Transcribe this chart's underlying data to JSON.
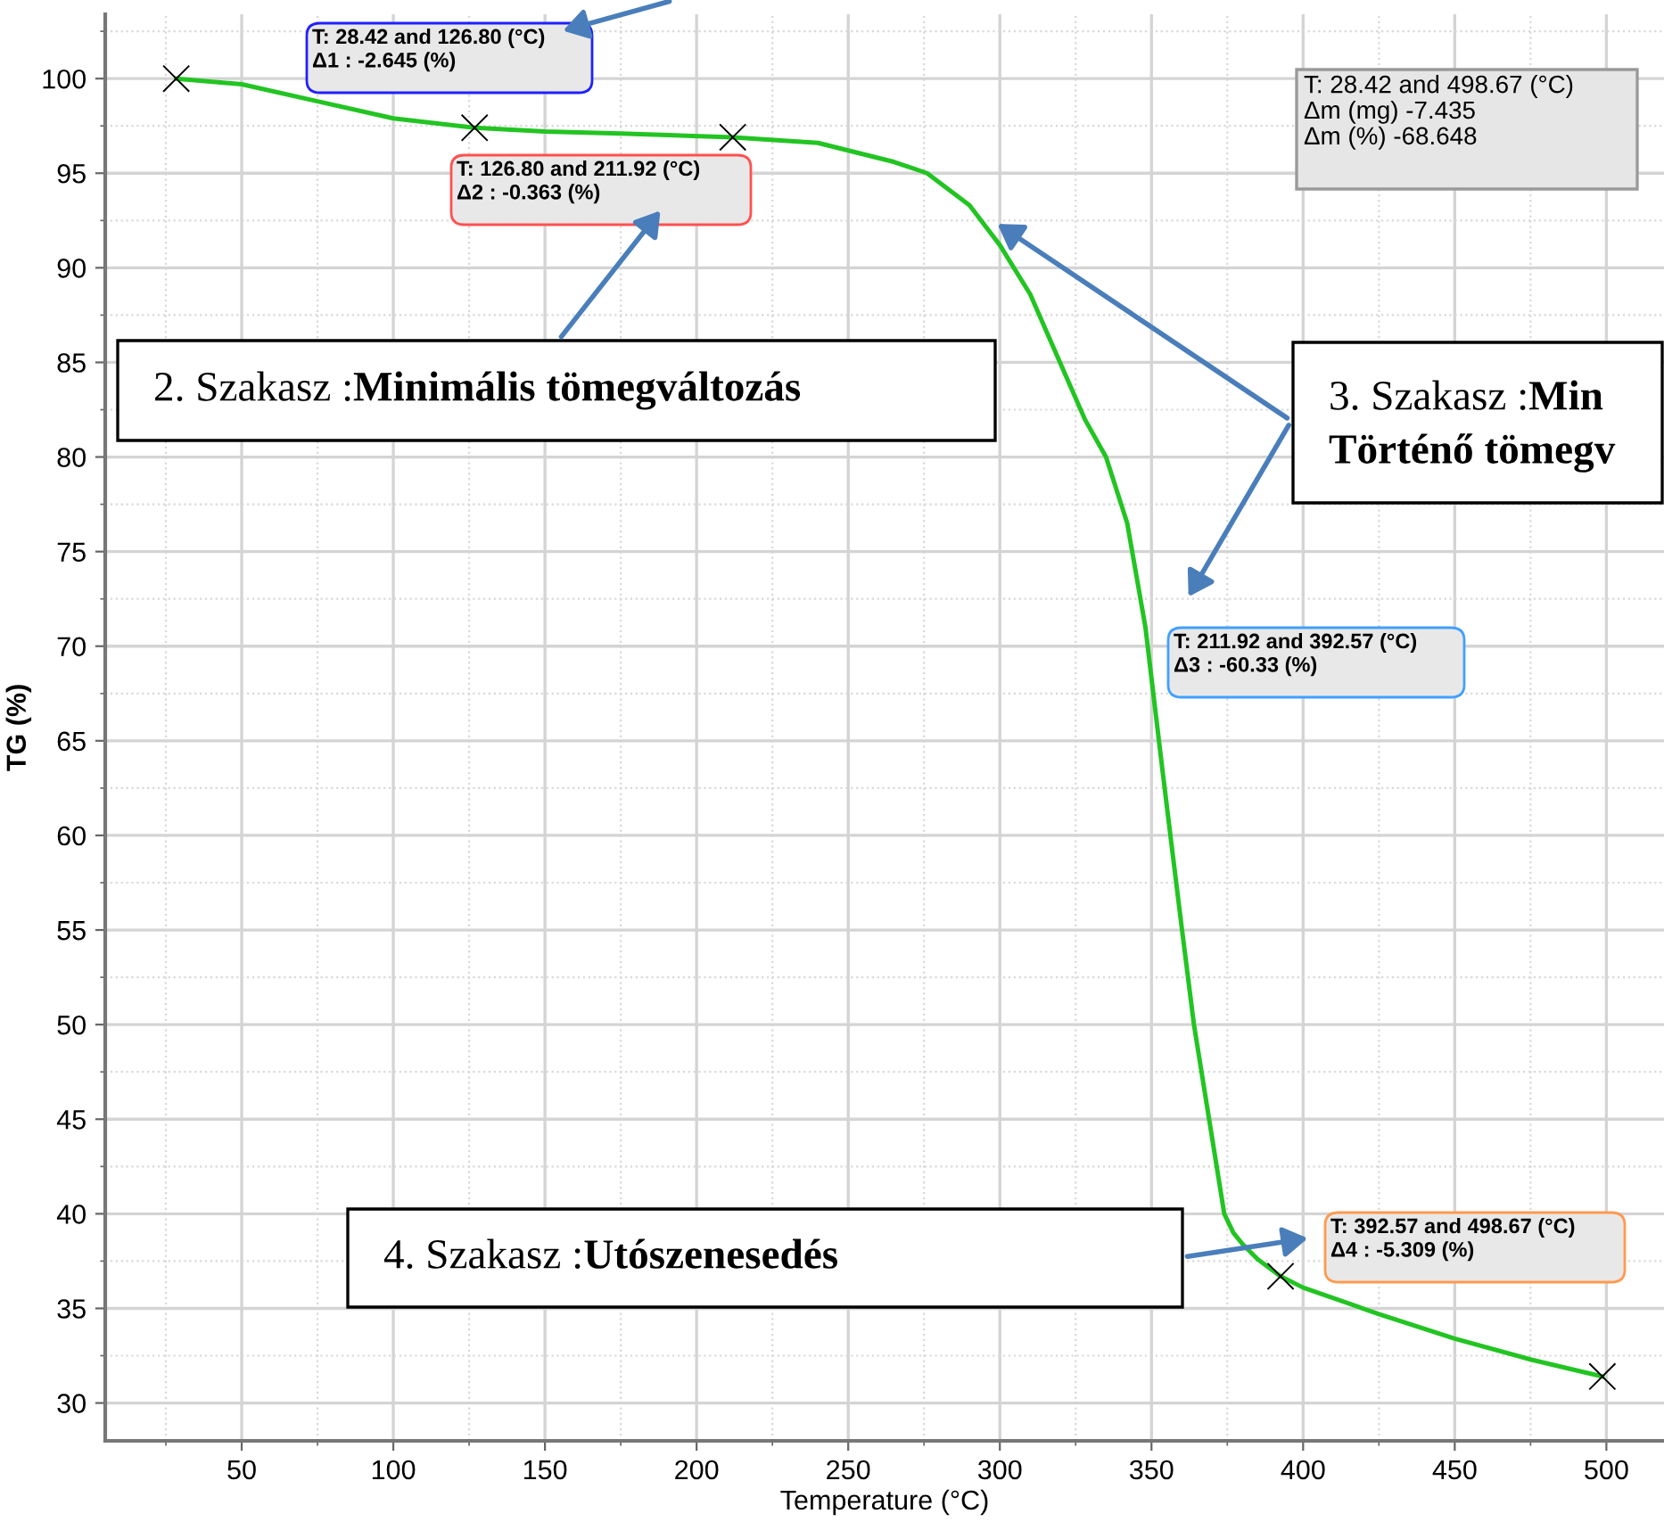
{
  "chart_data": {
    "type": "line",
    "xlabel": "Temperature (°C)",
    "ylabel": "TG (%)",
    "xlim": [
      5,
      519
    ],
    "xticks": [
      50,
      100,
      150,
      200,
      250,
      300,
      350,
      400,
      450,
      500
    ],
    "ylim": [
      28,
      103.4
    ],
    "yticks": [
      30,
      35,
      40,
      45,
      50,
      55,
      60,
      65,
      70,
      75,
      80,
      85,
      90,
      95,
      100
    ],
    "grid": true,
    "legend": false,
    "series": [
      {
        "color": "#22c422",
        "marker": "none",
        "line_style": "solid",
        "x": [
          28.42,
          50,
          75,
          100,
          126.8,
          150,
          175,
          211.92,
          240,
          255,
          265,
          276,
          290,
          300,
          310,
          319,
          328,
          335,
          342,
          348,
          353.5,
          357,
          360,
          364,
          369,
          372,
          374,
          377,
          380,
          385,
          392.57,
          400,
          425,
          450,
          475,
          498.67
        ],
        "values": [
          100.0,
          99.7,
          98.8,
          97.9,
          97.4,
          97.2,
          97.1,
          96.9,
          96.6,
          96.0,
          95.6,
          95.0,
          93.3,
          91.2,
          88.6,
          85.3,
          82.0,
          80.0,
          76.5,
          71.0,
          63.6,
          59.0,
          55.1,
          50.0,
          45.0,
          42.0,
          40.0,
          39.0,
          38.4,
          37.6,
          36.7,
          36.1,
          34.7,
          33.4,
          32.3,
          31.4
        ]
      },
      {
        "type": "scatter",
        "color": "#000000",
        "marker": "cross",
        "x": [
          28.42,
          126.8,
          211.92,
          392.57,
          498.67
        ],
        "values": [
          100.0,
          97.4,
          96.9,
          36.7,
          31.4
        ]
      }
    ],
    "annotations": [
      "T: 28.42 and 126.80 (°C)\nΔ1 : -2.645 (%)",
      "T: 126.80 and 211.92 (°C)\nΔ2 : -0.363 (%)",
      "T: 28.42 and 498.67 (°C)\nΔm (mg) -7.435\nΔm (%) -68.648",
      "T: 211.92 and 392.57 (°C)\nΔ3 : -60.33 (%)",
      "T: 392.57 and 498.67 (°C)\nΔ4 : -5.309 (%)",
      "2. Szakasz :Minimális tömegváltozás",
      "3. Szakasz :Min\nTörténő tömegv",
      "4. Szakasz :Utószenesedés"
    ]
  }
}
